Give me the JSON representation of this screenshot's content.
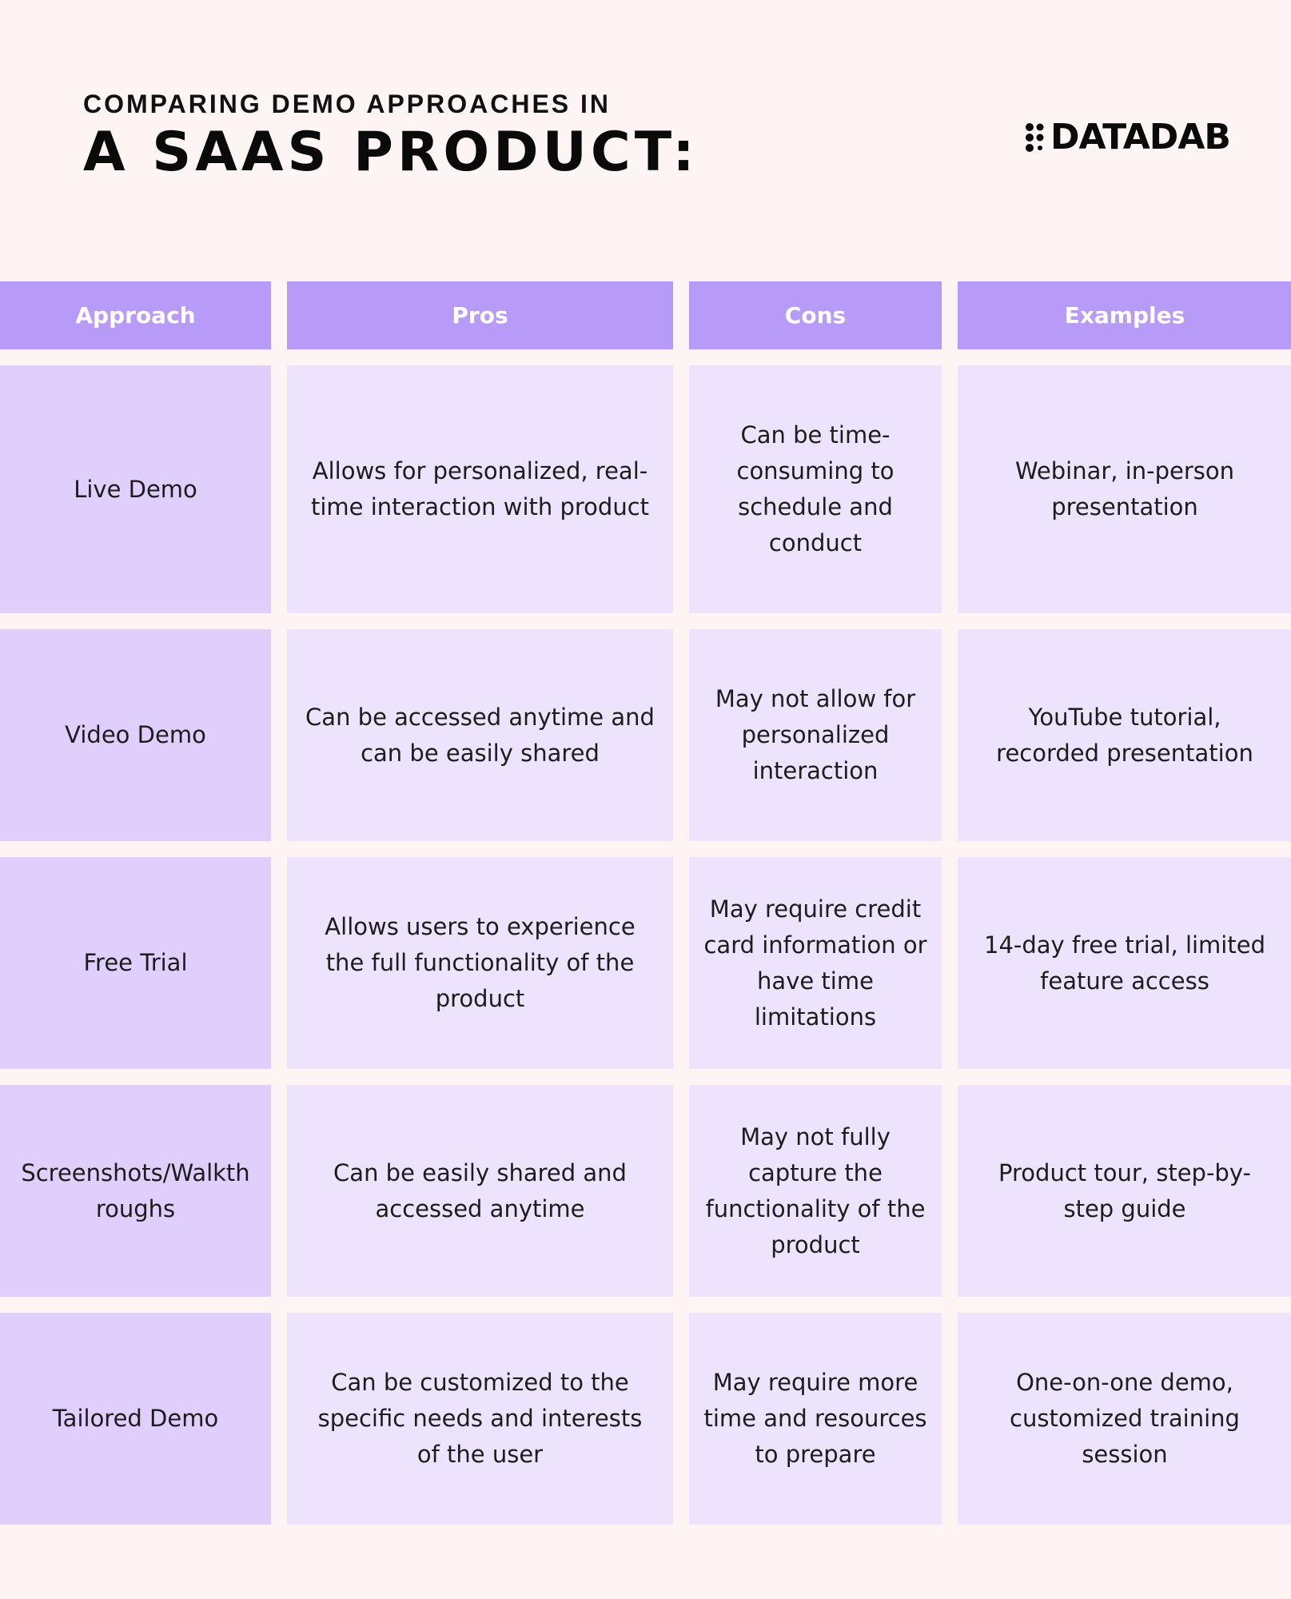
{
  "header": {
    "subtitle": "COMPARING DEMO APPROACHES IN",
    "title": "A SAAS PRODUCT:"
  },
  "logo": {
    "text": "DATADAB",
    "icon": "dots-grid-icon"
  },
  "table": {
    "columns": [
      "Approach",
      "Pros",
      "Cons",
      "Examples"
    ],
    "rows": [
      {
        "approach": "Live Demo",
        "pros": "Allows for personalized, real-time interaction with product",
        "cons": "Can be time-consuming to schedule and conduct",
        "examples": "Webinar, in-person presentation"
      },
      {
        "approach": "Video Demo",
        "pros": "Can be accessed anytime and can be easily shared",
        "cons": "May not allow for personalized interaction",
        "examples": "YouTube tutorial, recorded presentation"
      },
      {
        "approach": "Free Trial",
        "pros": "Allows users to experience the full functionality of the product",
        "cons": "May require credit card information or have time limitations",
        "examples": "14-day free trial, limited feature access"
      },
      {
        "approach": "Screenshots/Walkthroughs",
        "pros": "Can be easily shared and accessed anytime",
        "cons": "May not fully capture the functionality of the product",
        "examples": "Product tour, step-by-step guide"
      },
      {
        "approach": "Tailored Demo",
        "pros": "Can be customized to the specific needs and interests of the user",
        "cons": "May require more time and resources to prepare",
        "examples": "One-on-one demo, customized training session"
      }
    ]
  },
  "colors": {
    "background": "#fdf5f3",
    "header_cell": "#b89bf8",
    "approach_cell": "#e0cefc",
    "other_cell": "#ede3fc"
  }
}
